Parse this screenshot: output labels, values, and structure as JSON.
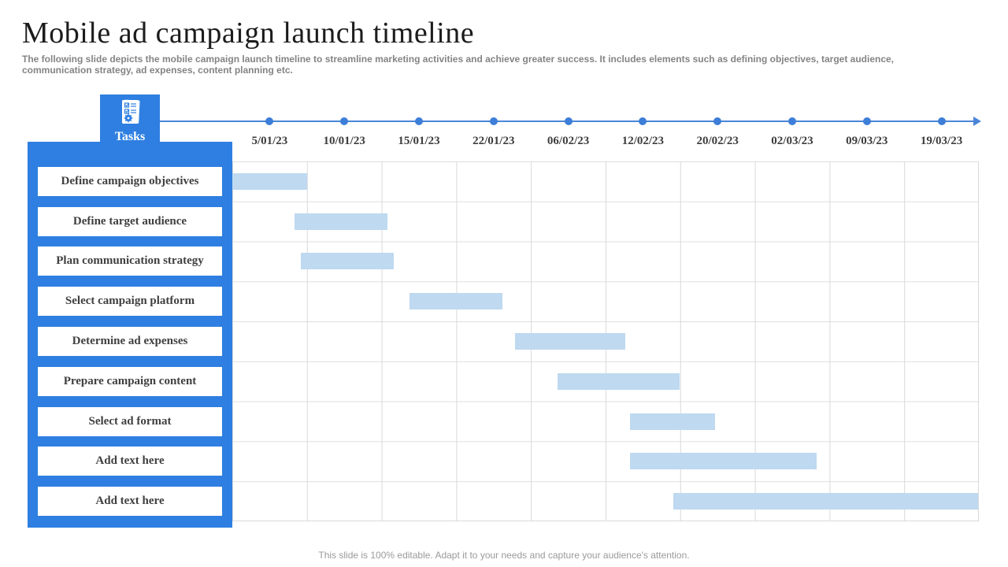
{
  "slide": {
    "title": "Mobile ad campaign launch timeline",
    "subtitle": "The following slide depicts the mobile campaign launch timeline to streamline marketing activities and achieve greater success. It includes elements such as defining objectives, target audience, communication strategy, ad expenses, content planning etc.",
    "footer": "This slide is 100% editable.  Adapt it to your needs and capture your audience's attention."
  },
  "gantt": {
    "header_label": "Tasks",
    "header_icon": "task-list-icon"
  },
  "colors": {
    "accent_blue": "#2e7fe1",
    "timeline_blue": "#3d7ed8",
    "bar_fill": "#bed9f0",
    "grid_line": "#d9d9d9",
    "title_text": "#1c1c1c",
    "muted_text": "#848484",
    "label_text": "#3f3f3f"
  },
  "chart_data": {
    "type": "gantt",
    "title": "Mobile ad campaign launch timeline",
    "x_labels": [
      "5/01/23",
      "10/01/23",
      "15/01/23",
      "22/01/23",
      "06/02/23",
      "12/02/23",
      "20/02/23",
      "02/03/23",
      "09/03/23",
      "19/03/23"
    ],
    "columns": 10,
    "rows": 9,
    "legend": "none",
    "grid": true,
    "tasks": [
      {
        "name": "Define campaign objectives",
        "start_col": 0.0,
        "end_col": 1.0,
        "start_date": "5/01/23",
        "end_date": "10/01/23"
      },
      {
        "name": "Define target audience",
        "start_col": 0.83,
        "end_col": 2.08,
        "start_date": "~9/01/23",
        "end_date": "~16/01/23"
      },
      {
        "name": "Plan communication strategy",
        "start_col": 0.92,
        "end_col": 2.16,
        "start_date": "~9/01/23",
        "end_date": "~16/01/23"
      },
      {
        "name": "Select campaign platform",
        "start_col": 2.37,
        "end_col": 3.62,
        "start_date": "~19/01/23",
        "end_date": "~28/01/23"
      },
      {
        "name": "Determine ad expenses",
        "start_col": 3.79,
        "end_col": 5.26,
        "start_date": "~03/02/23",
        "end_date": "~14/02/23"
      },
      {
        "name": "Prepare campaign content",
        "start_col": 4.36,
        "end_col": 5.99,
        "start_date": "~08/02/23",
        "end_date": "~20/02/23"
      },
      {
        "name": "Select ad format",
        "start_col": 5.33,
        "end_col": 6.47,
        "start_date": "~14/02/23",
        "end_date": "~24/02/23"
      },
      {
        "name": "Add text here",
        "start_col": 5.33,
        "end_col": 7.83,
        "start_date": "~14/02/23",
        "end_date": "~08/03/23"
      },
      {
        "name": "Add text here",
        "start_col": 5.91,
        "end_col": 9.99,
        "start_date": "~17/02/23",
        "end_date": "19/03/23"
      }
    ]
  }
}
